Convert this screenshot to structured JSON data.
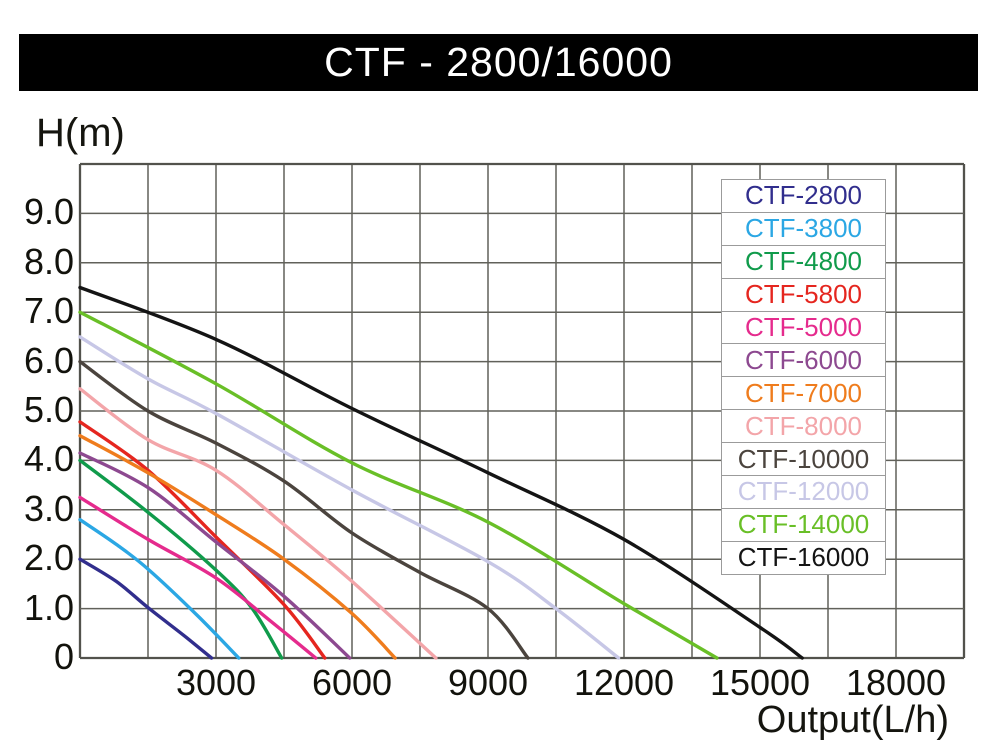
{
  "chart_data": {
    "type": "line",
    "title": "CTF - 2800/16000",
    "xlabel": "Output(L/h)",
    "ylabel": "H(m)",
    "xlim": [
      0,
      19500
    ],
    "ylim": [
      0,
      10
    ],
    "x_grid_step": 1500,
    "y_grid_step": 1,
    "grid": true,
    "legend_position": "inside-top-right",
    "x_ticks": [
      {
        "value": 3000,
        "label": "3000"
      },
      {
        "value": 6000,
        "label": "6000"
      },
      {
        "value": 9000,
        "label": "9000"
      },
      {
        "value": 12000,
        "label": "12000"
      },
      {
        "value": 15000,
        "label": "15000"
      },
      {
        "value": 18000,
        "label": "18000"
      }
    ],
    "y_ticks": [
      {
        "value": 9,
        "label": "9.0"
      },
      {
        "value": 8,
        "label": "8.0"
      },
      {
        "value": 7,
        "label": "7.0"
      },
      {
        "value": 6,
        "label": "6.0"
      },
      {
        "value": 5,
        "label": "5.0"
      },
      {
        "value": 4,
        "label": "4.0"
      },
      {
        "value": 3,
        "label": "3.0"
      },
      {
        "value": 2,
        "label": "2.0"
      },
      {
        "value": 1,
        "label": "1.0"
      },
      {
        "value": 0,
        "label": "0"
      }
    ],
    "series": [
      {
        "label": "CTF-2800",
        "color": "#312e8d",
        "max_head_m": 2.0,
        "max_flow_lh": 2900,
        "points": [
          [
            0,
            2.0
          ],
          [
            800,
            1.55
          ],
          [
            1500,
            1.02
          ],
          [
            2300,
            0.45
          ],
          [
            2900,
            0
          ]
        ]
      },
      {
        "label": "CTF-3800",
        "color": "#2ba7e4",
        "max_head_m": 2.8,
        "max_flow_lh": 3500,
        "points": [
          [
            0,
            2.8
          ],
          [
            800,
            2.3
          ],
          [
            1500,
            1.8
          ],
          [
            2600,
            0.85
          ],
          [
            3500,
            0
          ]
        ]
      },
      {
        "label": "CTF-4800",
        "color": "#109b4b",
        "max_head_m": 4.0,
        "max_flow_lh": 4450,
        "points": [
          [
            0,
            4.0
          ],
          [
            1500,
            2.95
          ],
          [
            3000,
            1.78
          ],
          [
            3800,
            1.0
          ],
          [
            4450,
            0
          ]
        ]
      },
      {
        "label": "CTF-5800",
        "color": "#e5261f",
        "max_head_m": 4.78,
        "max_flow_lh": 5400,
        "points": [
          [
            0,
            4.78
          ],
          [
            1500,
            3.8
          ],
          [
            3000,
            2.45
          ],
          [
            4500,
            1.08
          ],
          [
            5400,
            0
          ]
        ]
      },
      {
        "label": "CTF-5000",
        "color": "#e52b8d",
        "max_head_m": 3.25,
        "max_flow_lh": 5200,
        "points": [
          [
            0,
            3.25
          ],
          [
            1500,
            2.4
          ],
          [
            3000,
            1.62
          ],
          [
            4200,
            0.75
          ],
          [
            5200,
            0
          ]
        ]
      },
      {
        "label": "CTF-6000",
        "color": "#8d4990",
        "max_head_m": 4.15,
        "max_flow_lh": 5950,
        "points": [
          [
            0,
            4.15
          ],
          [
            1500,
            3.45
          ],
          [
            3000,
            2.35
          ],
          [
            4500,
            1.25
          ],
          [
            5950,
            0
          ]
        ]
      },
      {
        "label": "CTF-7000",
        "color": "#ef7c1d",
        "max_head_m": 4.5,
        "max_flow_lh": 6950,
        "points": [
          [
            0,
            4.5
          ],
          [
            1500,
            3.75
          ],
          [
            3000,
            2.9
          ],
          [
            4500,
            2.0
          ],
          [
            6000,
            0.9
          ],
          [
            6950,
            0
          ]
        ]
      },
      {
        "label": "CTF-8000",
        "color": "#f3a5a9",
        "max_head_m": 5.45,
        "max_flow_lh": 7850,
        "points": [
          [
            0,
            5.45
          ],
          [
            1500,
            4.42
          ],
          [
            3000,
            3.8
          ],
          [
            4500,
            2.7
          ],
          [
            6000,
            1.55
          ],
          [
            7850,
            0
          ]
        ]
      },
      {
        "label": "CTF-10000",
        "color": "#4b443e",
        "max_head_m": 6.0,
        "max_flow_lh": 9880,
        "points": [
          [
            0,
            6.0
          ],
          [
            1500,
            5.0
          ],
          [
            3000,
            4.35
          ],
          [
            4500,
            3.58
          ],
          [
            6000,
            2.53
          ],
          [
            7500,
            1.73
          ],
          [
            9000,
            1.0
          ],
          [
            9880,
            0
          ]
        ]
      },
      {
        "label": "CTF-12000",
        "color": "#c7c7e6",
        "max_head_m": 6.5,
        "max_flow_lh": 11880,
        "points": [
          [
            0,
            6.5
          ],
          [
            1500,
            5.65
          ],
          [
            3000,
            4.95
          ],
          [
            6000,
            3.4
          ],
          [
            9000,
            1.95
          ],
          [
            10500,
            1.0
          ],
          [
            11880,
            0
          ]
        ]
      },
      {
        "label": "CTF-14000",
        "color": "#69bf27",
        "max_head_m": 7.0,
        "max_flow_lh": 14050,
        "points": [
          [
            0,
            7.0
          ],
          [
            3000,
            5.55
          ],
          [
            6000,
            3.95
          ],
          [
            9000,
            2.75
          ],
          [
            12000,
            1.1
          ],
          [
            14050,
            0
          ]
        ]
      },
      {
        "label": "CTF-16000",
        "color": "#141414",
        "max_head_m": 7.5,
        "max_flow_lh": 15930,
        "points": [
          [
            0,
            7.5
          ],
          [
            3000,
            6.45
          ],
          [
            6000,
            5.05
          ],
          [
            9000,
            3.75
          ],
          [
            12000,
            2.4
          ],
          [
            15000,
            0.62
          ],
          [
            15930,
            0
          ]
        ]
      }
    ]
  }
}
